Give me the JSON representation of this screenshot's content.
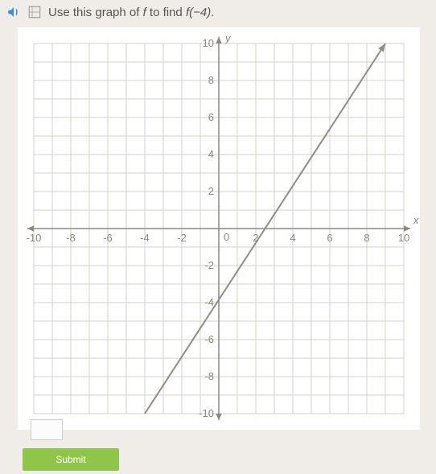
{
  "header": {
    "speaker_icon": "speaker-icon",
    "tool_icon": "read-aloud-icon",
    "prompt_prefix": "Use this graph of ",
    "prompt_var": "f",
    "prompt_mid": " to find ",
    "prompt_func": "f(−4)",
    "prompt_suffix": "."
  },
  "chart": {
    "type": "line",
    "xlim": [
      -10,
      10
    ],
    "ylim": [
      -10,
      10
    ],
    "tick_step": 2,
    "grid_minor_step": 1,
    "x_axis_label": "x",
    "y_axis_label": "y",
    "x_ticks": [
      -10,
      -8,
      -6,
      -4,
      -2,
      0,
      2,
      4,
      6,
      8,
      10
    ],
    "y_ticks": [
      -10,
      -8,
      -6,
      -4,
      -2,
      2,
      4,
      6,
      8,
      10
    ],
    "background_color": "#ffffff",
    "grid_color": "#d6d2c8",
    "axis_color": "#8b8880",
    "line_color": "#8f8d86",
    "line_width": 2,
    "line_points": [
      [
        -4,
        -10
      ],
      [
        9,
        10
      ]
    ],
    "arrow_size": 6,
    "label_color": "#8a8880",
    "label_fontsize": 13
  },
  "controls": {
    "answer_placeholder": "",
    "submit_label": "Submit",
    "submit_bg": "#8fc64a"
  }
}
